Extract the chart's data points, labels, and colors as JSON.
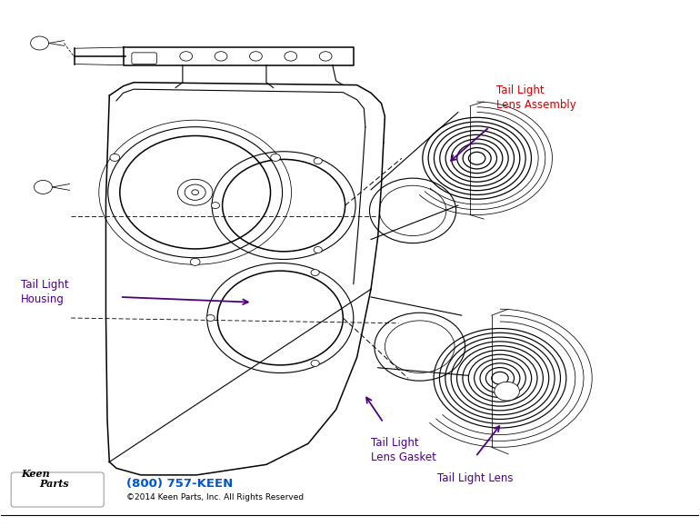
{
  "bg_color": "#ffffff",
  "label_color_red": "#cc0000",
  "label_color_purple": "#4b0082",
  "phone_color": "#0055cc",
  "label_lens_assembly": "Tail Light\nLens Assembly",
  "label_housing": "Tail Light\nHousing",
  "label_gasket": "Tail Light\nLens Gasket",
  "label_lens": "Tail Light Lens",
  "footer_phone": "(800) 757-KEEN",
  "footer_copy": "©2014 Keen Parts, Inc. All Rights Reserved"
}
